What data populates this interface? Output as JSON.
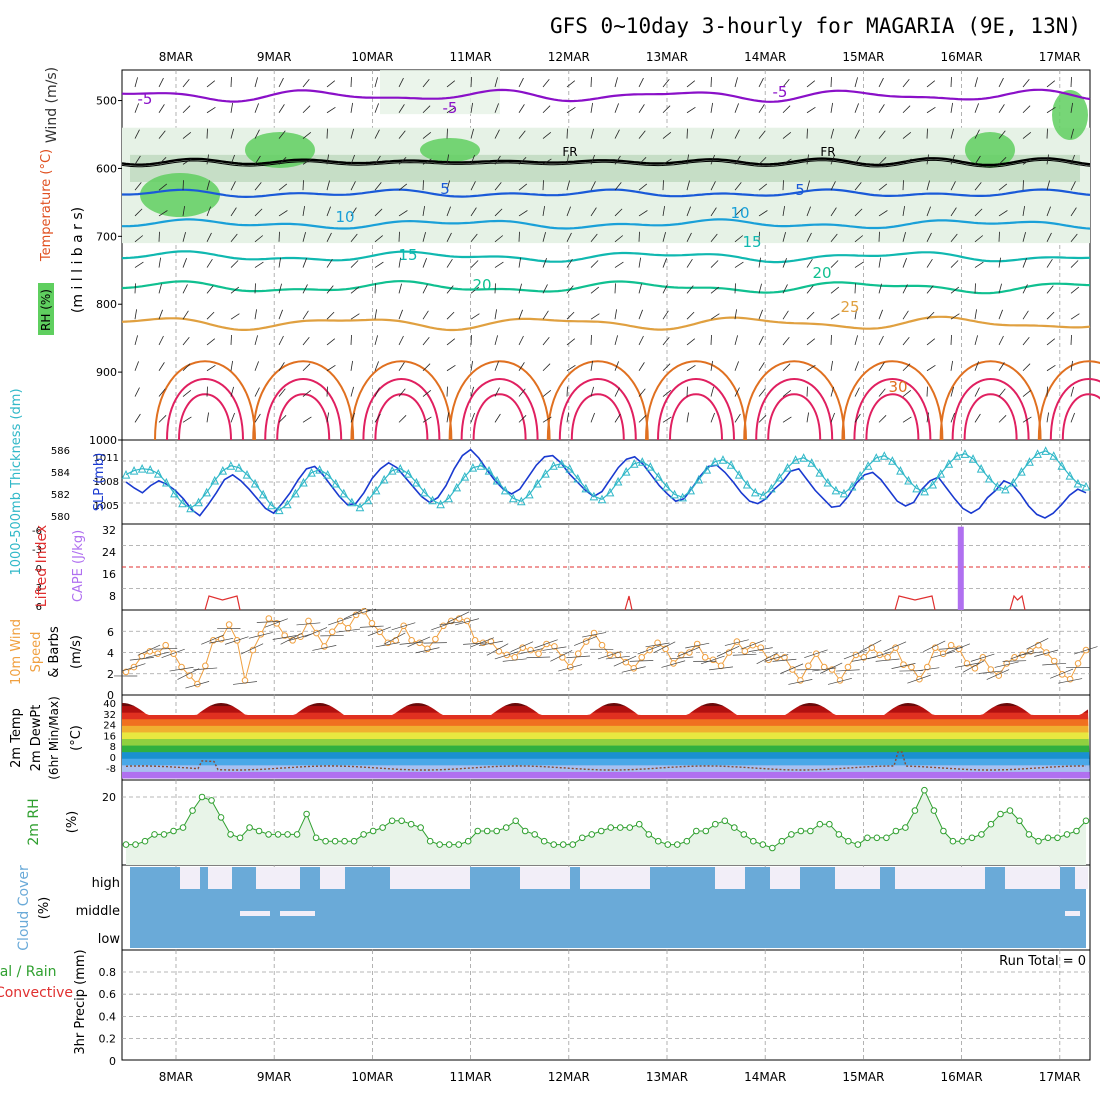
{
  "title": "GFS 0~10day 3-hourly for MAGARIA (9E, 13N)",
  "date_labels": [
    "8MAR",
    "9MAR",
    "10MAR",
    "11MAR",
    "12MAR",
    "13MAR",
    "14MAR",
    "15MAR",
    "16MAR",
    "17MAR"
  ],
  "colors": {
    "frame": "#000000",
    "grid": "#a0a0a0",
    "rh_fill_light": "#e6f2e6",
    "rh_fill_mid": "#b8d6b8",
    "rh_fill_high": "#5fcf5f",
    "temp_m5": "#8a10c8",
    "temp_5": "#1a5ad8",
    "temp_10": "#1aa0d8",
    "temp_15": "#10b8b0",
    "temp_20": "#10c090",
    "temp_25": "#e0a040",
    "temp_30": "#e07020",
    "temp_35": "#e02060",
    "thickness": "#1a3ad0",
    "slp": "#30b8c8",
    "lifted_index": "#e03030",
    "cape": "#b070f0",
    "wind_speed": "#f0a040",
    "rh2m": "#30a030",
    "cloud": "#6aaad8",
    "cloud_gap": "#f2eef8"
  },
  "panels": {
    "upper": {
      "left_labels": {
        "wind": "Wind (m/s)",
        "temperature": "Temperature (°C)",
        "rh": "RH (%)",
        "unit": "(m i l l i b a r s)"
      },
      "y_ticks": [
        "500",
        "600",
        "700",
        "800",
        "900",
        "1000"
      ],
      "contour_labels": [
        {
          "text": "-5",
          "color": "temp_m5"
        },
        {
          "text": "-5",
          "color": "temp_m5"
        },
        {
          "text": "-5",
          "color": "temp_m5"
        },
        {
          "text": "5",
          "color": "temp_5"
        },
        {
          "text": "5",
          "color": "temp_5"
        },
        {
          "text": "10",
          "color": "temp_10"
        },
        {
          "text": "10",
          "color": "temp_10"
        },
        {
          "text": "15",
          "color": "temp_15"
        },
        {
          "text": "15",
          "color": "temp_15"
        },
        {
          "text": "20",
          "color": "temp_20"
        },
        {
          "text": "20",
          "color": "temp_20"
        },
        {
          "text": "25",
          "color": "temp_25"
        },
        {
          "text": "30",
          "color": "temp_30"
        },
        {
          "text": "FR",
          "color": "frame"
        },
        {
          "text": "FR",
          "color": "frame"
        }
      ]
    },
    "thickness_slp": {
      "label_thickness": "1000-500mb Thickness (dm)",
      "label_slp": "SLP (mb)",
      "thickness_ticks": [
        "586",
        "584",
        "582",
        "580"
      ],
      "slp_ticks": [
        "1011",
        "1008",
        "1005"
      ]
    },
    "cape_li": {
      "label_li": "Lifted Index",
      "label_cape": "CAPE (J/kg)",
      "li_ticks": [
        "-6",
        "-3",
        "0",
        "3",
        "6"
      ],
      "cape_ticks": [
        "32",
        "24",
        "16",
        "8"
      ]
    },
    "wind10": {
      "label_a": "10m Wind",
      "label_b": "Speed",
      "label_c": "& Barbs",
      "unit": "(m/s)",
      "ticks": [
        "6",
        "4",
        "2",
        "0"
      ]
    },
    "temp2m": {
      "label_a": "2m Temp",
      "label_b": "2m DewPt",
      "label_c": "(6hr Min/Max)",
      "unit": "(°C)",
      "ticks": [
        "40",
        "32",
        "24",
        "16",
        "8",
        "0",
        "-8"
      ]
    },
    "rh2m": {
      "label": "2m RH",
      "unit": "(%)",
      "ticks": [
        "20"
      ]
    },
    "cloud": {
      "label": "Cloud Cover",
      "unit": "(%)",
      "levels": [
        "high",
        "middle",
        "low"
      ]
    },
    "precip": {
      "label_a": "Total / Rain",
      "label_b": "Convective",
      "unit": "3hr Precip (mm)",
      "ticks": [
        "0.8",
        "0.6",
        "0.4",
        "0.2",
        "0"
      ],
      "run_total": "Run Total = 0"
    }
  },
  "chart_data": [
    {
      "type": "line",
      "name": "1000-500mb thickness",
      "ylabel": "1000-500mb Thickness (dm)",
      "ylim": [
        580,
        587
      ],
      "values": [
        583.5,
        583,
        582.6,
        583.2,
        583.6,
        583.3,
        582.8,
        582.1,
        581.2,
        580.7,
        581.6,
        582.6,
        583.7,
        584.1,
        583.6,
        582.9,
        582.1,
        581.3,
        580.9,
        581.7,
        582.6,
        583.7,
        584.6,
        584.8,
        584.1,
        583.2,
        582.3,
        581.6,
        581.7,
        582.6,
        583.8,
        584.6,
        585.1,
        584.7,
        583.9,
        583.1,
        582.3,
        581.8,
        582.2,
        583.2,
        584.6,
        585.7,
        586.2,
        585.5,
        584.5,
        583.6,
        582.9,
        582.5,
        582.9,
        583.9,
        584.9,
        585.6,
        585.7,
        585.1,
        584.2,
        583.5,
        582.8,
        582.3,
        582.7,
        583.7,
        584.7,
        585.4,
        585.6,
        585,
        584.1,
        583.2,
        582.5,
        581.9,
        582.1,
        583,
        584,
        584.8,
        584.9,
        584.3,
        583.5,
        582.6,
        581.9,
        581.7,
        582.1,
        582.9,
        583.5,
        584.4,
        584.6,
        583.7,
        582.8,
        582.1,
        581.4,
        581.5,
        582.3,
        583.4,
        584.1,
        584.3,
        583.7,
        582.8,
        581.9,
        581.5,
        581.8,
        582.9,
        583.6,
        583.9,
        583,
        582.1,
        581.3,
        580.9,
        581.3,
        582.2,
        582.8,
        583.6,
        583.3,
        582.5,
        581.5,
        580.8,
        580.5,
        580.9,
        581.6,
        582.4,
        582.9,
        582.6
      ]
    },
    {
      "type": "line",
      "name": "SLP",
      "ylabel": "SLP (mb)",
      "ylim": [
        1003.5,
        1012
      ],
      "values": [
        1008.5,
        1008.9,
        1009.1,
        1009,
        1008.6,
        1007.7,
        1006.6,
        1005.6,
        1005.1,
        1005.7,
        1006.7,
        1007.9,
        1008.9,
        1009.4,
        1009.2,
        1008.5,
        1007.6,
        1006.5,
        1005.4,
        1004.9,
        1005.5,
        1006.6,
        1007.7,
        1008.7,
        1009,
        1008.5,
        1007.6,
        1006.6,
        1005.7,
        1005.2,
        1005.9,
        1006.9,
        1008,
        1008.9,
        1009.1,
        1008.6,
        1007.7,
        1006.7,
        1005.9,
        1005.5,
        1006.1,
        1007.2,
        1008.3,
        1009.2,
        1009.4,
        1008.9,
        1007.9,
        1006.9,
        1006.1,
        1005.8,
        1006.5,
        1007.6,
        1008.6,
        1009.4,
        1009.6,
        1009.1,
        1008.1,
        1007.1,
        1006.3,
        1006,
        1006.7,
        1007.8,
        1008.8,
        1009.6,
        1009.8,
        1009.3,
        1008.3,
        1007.3,
        1006.5,
        1006.2,
        1006.9,
        1008,
        1009,
        1009.8,
        1010,
        1009.5,
        1008.5,
        1007.5,
        1006.7,
        1006.4,
        1007.1,
        1008.2,
        1009.2,
        1010,
        1010.2,
        1009.7,
        1008.7,
        1007.7,
        1006.9,
        1006.6,
        1007.3,
        1008.4,
        1009.4,
        1010.2,
        1010.4,
        1009.9,
        1008.9,
        1007.9,
        1007.1,
        1006.8,
        1007.5,
        1008.6,
        1009.6,
        1010.4,
        1010.6,
        1010.1,
        1009.1,
        1008.1,
        1007.3,
        1007,
        1007.7,
        1008.8,
        1009.8,
        1010.6,
        1010.9,
        1010.4,
        1009.4,
        1008.4,
        1007.6,
        1007.3
      ]
    },
    {
      "type": "bar",
      "name": "CAPE",
      "ylabel": "CAPE (J/kg)",
      "ylim": [
        0,
        32
      ],
      "values": [
        0,
        0,
        0,
        0,
        0,
        0,
        0,
        0,
        0,
        0,
        0,
        0,
        0,
        0,
        0,
        0,
        0,
        0,
        0,
        0,
        0,
        0,
        0,
        0,
        0,
        0,
        0,
        0,
        0,
        0,
        0,
        0,
        0,
        0,
        0,
        0,
        0,
        0,
        0,
        0,
        0,
        0,
        0,
        0,
        0,
        0,
        0,
        0,
        0,
        0,
        0,
        0,
        0,
        0,
        0,
        0,
        0,
        0,
        0,
        0,
        0,
        0,
        0,
        0,
        0,
        0,
        0,
        0,
        0,
        0,
        0,
        0,
        0,
        0,
        0,
        0,
        0,
        0,
        0,
        0,
        0,
        0,
        0,
        0,
        0,
        0,
        0,
        0,
        0,
        0,
        0,
        0,
        0,
        0,
        0,
        0,
        0,
        0,
        0,
        0,
        0,
        0,
        0,
        0,
        0,
        0,
        0,
        0,
        0,
        0,
        0,
        0,
        0,
        0,
        0,
        0,
        0,
        0,
        0,
        0,
        31,
        0,
        0,
        0,
        0,
        0,
        0,
        0,
        0,
        0,
        0,
        0,
        0,
        0,
        0,
        0,
        0,
        0,
        0
      ]
    },
    {
      "type": "line",
      "name": "10m wind speed",
      "ylabel": "(m/s)",
      "ylim": [
        0,
        7
      ],
      "values": [
        1.9,
        2.3,
        3.2,
        3.6,
        3.4,
        4.1,
        3.4,
        2.3,
        1.6,
        0.9,
        2.4,
        4.5,
        4.6,
        5.8,
        4.5,
        1.2,
        3.7,
        5,
        6.3,
        5.9,
        4.9,
        4.5,
        4.8,
        6.1,
        5.1,
        4,
        5.2,
        6.1,
        5.5,
        6.6,
        6.9,
        5.9,
        5.2,
        4.3,
        4.5,
        5.7,
        4.5,
        4.3,
        3.8,
        4.6,
        5.7,
        6.1,
        6.3,
        6.1,
        4.5,
        4.3,
        4.4,
        3.6,
        3.3,
        3.1,
        3.9,
        3.7,
        3.4,
        4.2,
        4,
        3.1,
        2.3,
        3.4,
        4.4,
        5.1,
        4.1,
        3.3,
        3.3,
        2.7,
        2.2,
        3.1,
        3.7,
        4.3,
        3.8,
        2.6,
        3.3,
        3.5,
        4.2,
        3.1,
        2.9,
        2.4,
        3.5,
        4.4,
        3.6,
        4.1,
        3.9,
        2.9,
        3.1,
        3.1,
        2.1,
        1.2,
        2.4,
        3.4,
        2.3,
        2.1,
        1.2,
        2.3,
        3.3,
        3.1,
        3.9,
        3.3,
        3.1,
        3.9,
        2.5,
        2.3,
        1.3,
        2.3,
        3.9,
        3.4,
        4.1,
        3.8,
        2.6,
        2.2,
        3.1,
        2.1,
        1.6,
        2.6,
        3.1,
        3.3,
        3.6,
        4.1,
        3.5,
        2.8,
        1.7,
        1.3,
        2.6,
        3.7
      ]
    },
    {
      "type": "line",
      "name": "2m RH",
      "ylabel": "(%)",
      "ylim": [
        0,
        25
      ],
      "values": [
        6,
        6,
        7,
        9,
        9,
        10,
        11,
        16,
        20,
        19,
        14,
        9,
        8,
        11,
        10,
        9,
        9,
        9,
        9,
        15,
        8,
        7,
        7,
        7,
        7,
        9,
        10,
        11,
        13,
        13,
        12,
        11,
        7,
        6,
        6,
        6,
        7,
        10,
        10,
        10,
        11,
        13,
        10,
        9,
        7,
        6,
        6,
        6,
        8,
        9,
        10,
        11,
        11,
        11,
        12,
        9,
        7,
        6,
        6,
        7,
        10,
        10,
        12,
        13,
        11,
        9,
        7,
        6,
        5,
        7,
        9,
        10,
        10,
        12,
        12,
        9,
        7,
        6,
        8,
        8,
        8,
        10,
        11,
        16,
        22,
        16,
        10,
        7,
        7,
        8,
        9,
        12,
        15,
        16,
        13,
        9,
        7,
        8,
        8,
        9,
        10,
        13
      ]
    },
    {
      "type": "line",
      "name": "Lifted Index",
      "ylabel": "Lifted Index",
      "ylim": [
        6,
        -6
      ],
      "values": [
        4.7,
        5.3,
        4.6,
        5.1,
        4.8
      ]
    }
  ]
}
